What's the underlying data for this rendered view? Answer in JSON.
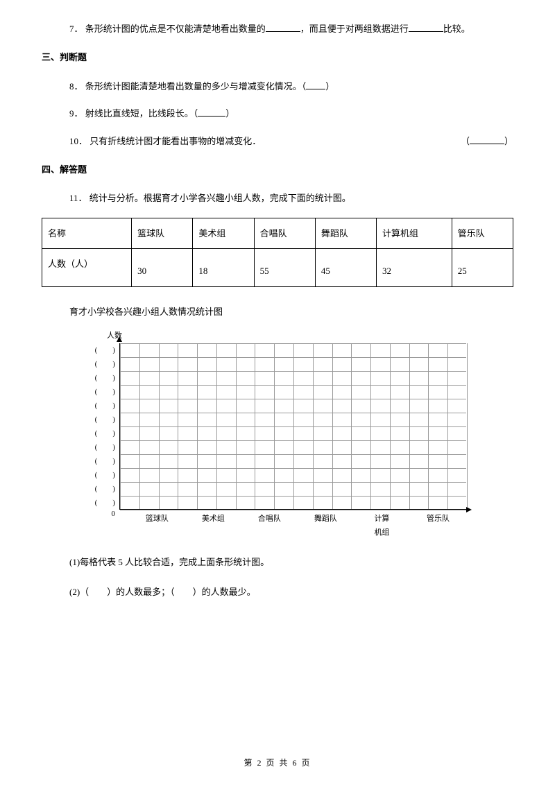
{
  "q7": {
    "num": "7．",
    "t1": "条形统计图的优点是不仅能清楚地看出数量的",
    "t2": "，而且便于对两组数据进行",
    "t3": "比较。"
  },
  "section3": "三、判断题",
  "q8": {
    "num": "8．",
    "t1": "条形统计图能清楚地看出数量的多少与增减变化情况。（",
    "t2": "）"
  },
  "q9": {
    "num": "9．",
    "t1": "射线比直线短，比线段长。（",
    "t2": "）"
  },
  "q10": {
    "num": "10．",
    "t1": "只有折线统计图才能看出事物的增减变化．",
    "right_open": "（",
    "right_close": "）"
  },
  "section4": "四、解答题",
  "q11": {
    "num": "11．",
    "text": "统计与分析。根据育才小学各兴趣小组人数，完成下面的统计图。"
  },
  "table": {
    "r1": [
      "名称",
      "篮球队",
      "美术组",
      "合唱队",
      "舞蹈队",
      "计算机组",
      "管乐队"
    ],
    "r2_head": "人数（人）",
    "r2": [
      "30",
      "18",
      "55",
      "45",
      "32",
      "25"
    ]
  },
  "chart": {
    "caption": "育才小学校各兴趣小组人数情况统计图",
    "y_label": "人数",
    "y_ticks": 12,
    "y_tick_label": "(　　)",
    "zero": "0",
    "rows": 12,
    "cols": 18,
    "grid_color": "#999999",
    "axis_color": "#000000",
    "x_labels": [
      "篮球队",
      "美术组",
      "合唱队",
      "舞蹈队",
      "计算\n机组",
      "管乐队"
    ]
  },
  "sub1": "(1)每格代表 5 人比较合适，完成上面条形统计图。",
  "sub2": "(2)（　　）的人数最多；（　　）的人数最少。",
  "footer": "第 2 页 共 6 页"
}
